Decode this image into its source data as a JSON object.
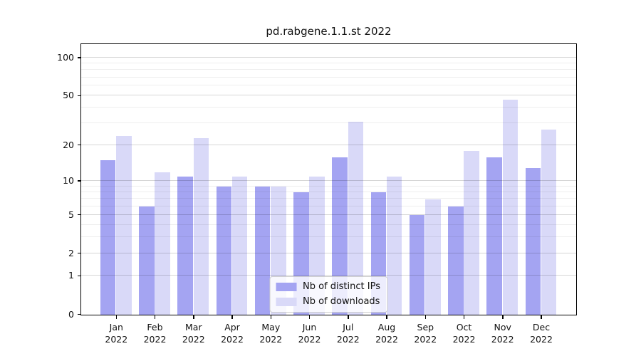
{
  "chart_data": {
    "type": "bar",
    "title": "pd.rabgene.1.1.st 2022",
    "categories": [
      "Jan",
      "Feb",
      "Mar",
      "Apr",
      "May",
      "Jun",
      "Jul",
      "Aug",
      "Sep",
      "Oct",
      "Nov",
      "Dec"
    ],
    "category_sublabel": "2022",
    "series": [
      {
        "name": "Nb of distinct IPs",
        "color": "#a4a4f2",
        "values": [
          15,
          6,
          11,
          9,
          9,
          8,
          16,
          8,
          5,
          6,
          16,
          13
        ]
      },
      {
        "name": "Nb of downloads",
        "color": "#d9d9f8",
        "values": [
          24,
          12,
          23,
          11,
          9,
          11,
          31,
          11,
          7,
          18,
          47,
          27
        ]
      }
    ],
    "xlabel": "",
    "ylabel": "",
    "yscale": "log1p",
    "ylim": [
      0,
      126
    ],
    "y_major_ticks": [
      100,
      50,
      20,
      10,
      5,
      2,
      1,
      0
    ],
    "y_minor_gridlines": [
      3,
      4,
      6,
      7,
      8,
      9,
      30,
      40,
      60,
      70,
      80,
      90
    ],
    "grid": "on",
    "legend_position": "lower center"
  },
  "colors": {
    "spine": "#000000",
    "grid_major": "#d6d6d6",
    "grid_minor": "#ededed",
    "legend_border": "#cccccc",
    "legend_background": "#ffffff",
    "text": "#111111"
  }
}
